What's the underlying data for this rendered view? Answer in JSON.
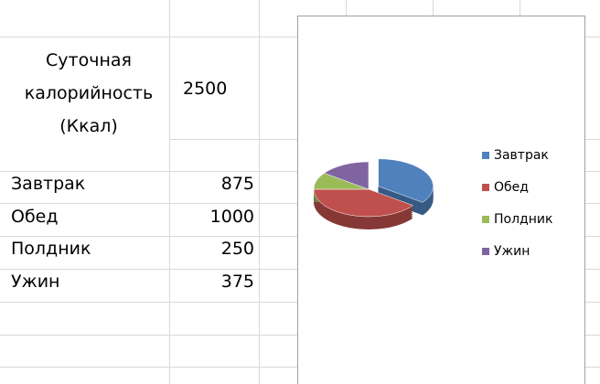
{
  "table": {
    "label": "Суточная калорийность (Ккал)",
    "total": 2500
  },
  "chart_data": {
    "type": "pie",
    "categories": [
      "Завтрак",
      "Обед",
      "Полдник",
      "Ужин"
    ],
    "values": [
      875,
      1000,
      250,
      375
    ],
    "colors": [
      "#4f81bd",
      "#c0504d",
      "#9bbb59",
      "#8064a2"
    ],
    "legend": "right"
  }
}
